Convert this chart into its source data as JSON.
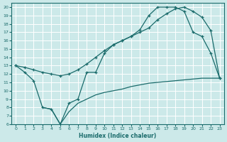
{
  "xlabel": "Humidex (Indice chaleur)",
  "xlim": [
    -0.5,
    23.5
  ],
  "ylim": [
    6,
    20.5
  ],
  "xticks": [
    0,
    1,
    2,
    3,
    4,
    5,
    6,
    7,
    8,
    9,
    10,
    11,
    12,
    13,
    14,
    15,
    16,
    17,
    18,
    19,
    20,
    21,
    22,
    23
  ],
  "yticks": [
    6,
    7,
    8,
    9,
    10,
    11,
    12,
    13,
    14,
    15,
    16,
    17,
    18,
    19,
    20
  ],
  "bg_color": "#cce9e9",
  "line_color": "#1a6b6b",
  "grid_color": "#ffffff",
  "line1_x": [
    0,
    1,
    2,
    3,
    4,
    5,
    6,
    7,
    8,
    9,
    10,
    11,
    12,
    13,
    14,
    15,
    16,
    17,
    18,
    19,
    20,
    21,
    22,
    23
  ],
  "line1_y": [
    13,
    12.2,
    11.2,
    8.0,
    7.8,
    6.0,
    8.5,
    9.0,
    12.2,
    12.2,
    14.5,
    15.5,
    16.0,
    16.5,
    17.3,
    19.0,
    20.0,
    20.0,
    20.0,
    19.5,
    17.0,
    16.5,
    14.5,
    11.5
  ],
  "line2_x": [
    0,
    1,
    2,
    3,
    4,
    5,
    6,
    7,
    8,
    9,
    10,
    11,
    12,
    13,
    14,
    15,
    16,
    17,
    18,
    19,
    20,
    21,
    22,
    23
  ],
  "line2_y": [
    13,
    12.8,
    12.5,
    12.2,
    12.0,
    11.8,
    12.0,
    12.5,
    13.2,
    14.0,
    14.8,
    15.5,
    16.0,
    16.5,
    17.0,
    17.5,
    18.5,
    19.2,
    19.8,
    20.0,
    19.5,
    18.8,
    17.2,
    11.5
  ],
  "line3_x": [
    3,
    4,
    5,
    6,
    7,
    8,
    9,
    10,
    11,
    12,
    13,
    14,
    15,
    16,
    17,
    18,
    19,
    20,
    21,
    22,
    23
  ],
  "line3_y": [
    8.0,
    7.8,
    6.0,
    7.5,
    8.5,
    9.0,
    9.5,
    9.8,
    10.0,
    10.2,
    10.5,
    10.7,
    10.9,
    11.0,
    11.1,
    11.2,
    11.3,
    11.4,
    11.5,
    11.5,
    11.5
  ]
}
